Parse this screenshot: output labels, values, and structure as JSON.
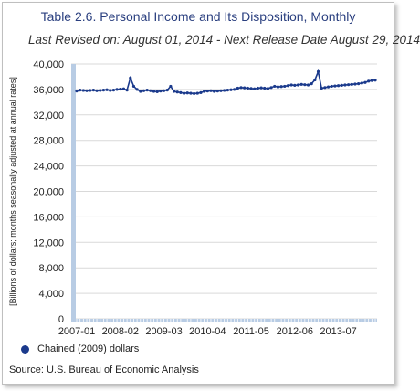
{
  "chart_data": {
    "type": "line",
    "title": "Table 2.6. Personal Income and Its Disposition, Monthly",
    "subtitle": "Last Revised on: August 01, 2014 - Next Release Date August 29, 2014",
    "ylabel": "[Billions of dollars; months seasonally adjusted at annual rates]",
    "xlabel": "",
    "ylim": [
      0,
      40000
    ],
    "y_ticks": [
      "40,000",
      "36,000",
      "32,000",
      "28,000",
      "24,000",
      "20,000",
      "16,000",
      "12,000",
      "8,000",
      "4,000",
      "0"
    ],
    "x_ticks": [
      "2007-01",
      "2008-02",
      "2009-03",
      "2010-04",
      "2011-05",
      "2012-06",
      "2013-07"
    ],
    "x_range": [
      "2007-01",
      "2014-06"
    ],
    "grid": "horizontal",
    "legend_position": "bottom-left",
    "series": [
      {
        "name": "Chained (2009) dollars",
        "color": "#1b3a8c",
        "x": [
          "2007-01",
          "2007-02",
          "2007-03",
          "2007-04",
          "2007-05",
          "2007-06",
          "2007-07",
          "2007-08",
          "2007-09",
          "2007-10",
          "2007-11",
          "2007-12",
          "2008-01",
          "2008-02",
          "2008-03",
          "2008-04",
          "2008-05",
          "2008-06",
          "2008-07",
          "2008-08",
          "2008-09",
          "2008-10",
          "2008-11",
          "2008-12",
          "2009-01",
          "2009-02",
          "2009-03",
          "2009-04",
          "2009-05",
          "2009-06",
          "2009-07",
          "2009-08",
          "2009-09",
          "2009-10",
          "2009-11",
          "2009-12",
          "2010-01",
          "2010-02",
          "2010-03",
          "2010-04",
          "2010-05",
          "2010-06",
          "2010-07",
          "2010-08",
          "2010-09",
          "2010-10",
          "2010-11",
          "2010-12",
          "2011-01",
          "2011-02",
          "2011-03",
          "2011-04",
          "2011-05",
          "2011-06",
          "2011-07",
          "2011-08",
          "2011-09",
          "2011-10",
          "2011-11",
          "2011-12",
          "2012-01",
          "2012-02",
          "2012-03",
          "2012-04",
          "2012-05",
          "2012-06",
          "2012-07",
          "2012-08",
          "2012-09",
          "2012-10",
          "2012-11",
          "2012-12",
          "2013-01",
          "2013-02",
          "2013-03",
          "2013-04",
          "2013-05",
          "2013-06",
          "2013-07",
          "2013-08",
          "2013-09",
          "2013-10",
          "2013-11",
          "2013-12",
          "2014-01",
          "2014-02",
          "2014-03",
          "2014-04",
          "2014-05",
          "2014-06"
        ],
        "values": [
          35750,
          35900,
          35850,
          35800,
          35850,
          35900,
          35800,
          35850,
          35900,
          35950,
          35850,
          35900,
          36000,
          36050,
          36100,
          35900,
          37800,
          36500,
          36000,
          35700,
          35800,
          35900,
          35800,
          35700,
          35650,
          35750,
          35800,
          35900,
          36500,
          35700,
          35600,
          35500,
          35400,
          35450,
          35400,
          35350,
          35400,
          35500,
          35700,
          35750,
          35800,
          35700,
          35750,
          35800,
          35850,
          35900,
          35950,
          36000,
          36200,
          36300,
          36250,
          36200,
          36150,
          36100,
          36200,
          36250,
          36200,
          36150,
          36300,
          36500,
          36400,
          36450,
          36500,
          36600,
          36700,
          36650,
          36700,
          36800,
          36750,
          36700,
          36900,
          37500,
          38800,
          36200,
          36300,
          36400,
          36500,
          36550,
          36600,
          36650,
          36700,
          36750,
          36800,
          36850,
          36900,
          37000,
          37100,
          37300,
          37400,
          37450
        ]
      }
    ]
  },
  "legend": {
    "label": "Chained (2009) dollars"
  },
  "source": "Source: U.S. Bureau of Economic Analysis"
}
